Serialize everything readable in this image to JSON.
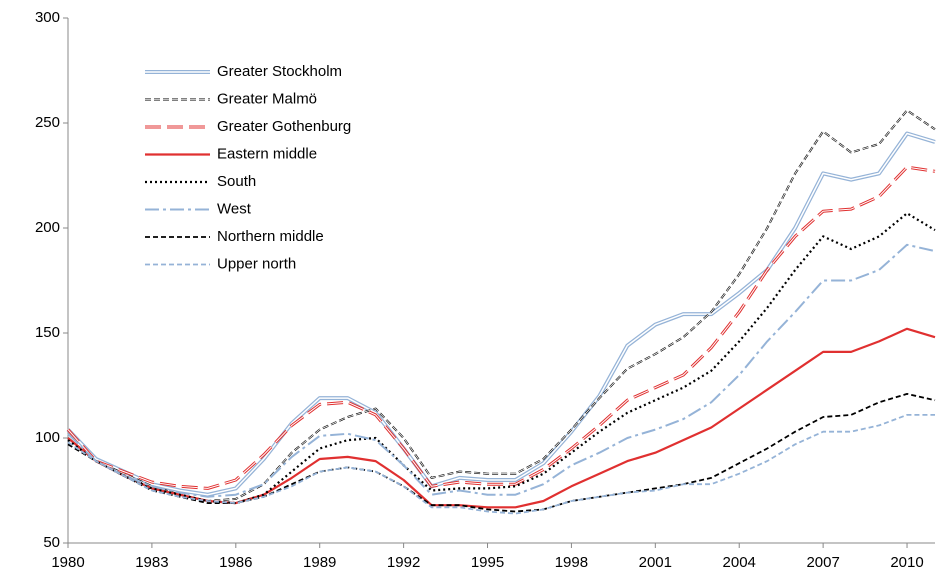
{
  "chart_data": {
    "type": "line",
    "x": [
      1980,
      1981,
      1982,
      1983,
      1984,
      1985,
      1986,
      1987,
      1988,
      1989,
      1990,
      1991,
      1992,
      1993,
      1994,
      1995,
      1996,
      1997,
      1998,
      1999,
      2000,
      2001,
      2002,
      2003,
      2004,
      2005,
      2006,
      2007,
      2008,
      2009,
      2010,
      2011
    ],
    "xlim": [
      1980,
      2011
    ],
    "xticks": [
      1980,
      1983,
      1986,
      1989,
      1992,
      1995,
      1998,
      2001,
      2004,
      2007,
      2010
    ],
    "ylim": [
      50,
      300
    ],
    "yticks": [
      50,
      100,
      150,
      200,
      250,
      300
    ],
    "grid": false,
    "legend": "top-left",
    "series": [
      {
        "name": "Greater Stockholm",
        "color": "#95b3d7",
        "style": "double",
        "values": [
          104,
          90,
          84,
          78,
          75,
          73,
          76,
          90,
          107,
          119,
          119,
          112,
          95,
          77,
          81,
          80,
          80,
          88,
          103,
          120,
          144,
          154,
          159,
          159,
          169,
          180,
          200,
          226,
          223,
          226,
          245,
          241
        ]
      },
      {
        "name": "Greater Malmö",
        "color": "#000000",
        "style": "dashed",
        "values": [
          100,
          89,
          83,
          77,
          73,
          70,
          71,
          78,
          93,
          104,
          110,
          114,
          100,
          81,
          84,
          83,
          83,
          90,
          104,
          119,
          133,
          140,
          148,
          160,
          178,
          200,
          226,
          246,
          236,
          240,
          256,
          247
        ]
      },
      {
        "name": "Greater Gothenburg",
        "color": "#e03030",
        "style": "long-dash-double",
        "values": [
          104,
          89,
          84,
          79,
          77,
          76,
          80,
          92,
          106,
          116,
          117,
          111,
          95,
          77,
          79,
          78,
          78,
          85,
          95,
          106,
          118,
          124,
          130,
          143,
          160,
          180,
          196,
          208,
          209,
          215,
          229,
          227
        ]
      },
      {
        "name": "Eastern middle",
        "color": "#e03030",
        "style": "solid",
        "values": [
          100,
          89,
          82,
          76,
          73,
          70,
          69,
          73,
          81,
          90,
          91,
          89,
          80,
          68,
          68,
          67,
          67,
          70,
          77,
          83,
          89,
          93,
          99,
          105,
          114,
          123,
          132,
          141,
          141,
          146,
          152,
          148
        ]
      },
      {
        "name": "South",
        "color": "#000000",
        "style": "dotted",
        "values": [
          99,
          89,
          82,
          76,
          73,
          70,
          69,
          73,
          84,
          95,
          99,
          100,
          87,
          75,
          76,
          76,
          77,
          83,
          93,
          103,
          112,
          118,
          124,
          132,
          146,
          162,
          180,
          196,
          190,
          196,
          207,
          199
        ]
      },
      {
        "name": "West",
        "color": "#95b3d7",
        "style": "dash-dot",
        "values": [
          102,
          89,
          82,
          77,
          74,
          72,
          73,
          78,
          91,
          101,
          102,
          99,
          87,
          73,
          75,
          73,
          73,
          78,
          87,
          93,
          100,
          104,
          109,
          117,
          130,
          146,
          160,
          175,
          175,
          180,
          192,
          189
        ]
      },
      {
        "name": "Northern middle",
        "color": "#000000",
        "style": "short-dash",
        "values": [
          97,
          89,
          82,
          75,
          72,
          69,
          69,
          72,
          78,
          84,
          86,
          84,
          77,
          68,
          68,
          66,
          65,
          66,
          70,
          72,
          74,
          76,
          78,
          81,
          88,
          95,
          103,
          110,
          111,
          117,
          121,
          118
        ]
      },
      {
        "name": "Upper north",
        "color": "#95b3d7",
        "style": "short-dash",
        "values": [
          98,
          89,
          82,
          75,
          72,
          70,
          69,
          72,
          77,
          84,
          86,
          84,
          77,
          67,
          67,
          65,
          64,
          66,
          70,
          72,
          74,
          75,
          78,
          78,
          83,
          89,
          97,
          103,
          103,
          106,
          111,
          111
        ]
      }
    ]
  }
}
